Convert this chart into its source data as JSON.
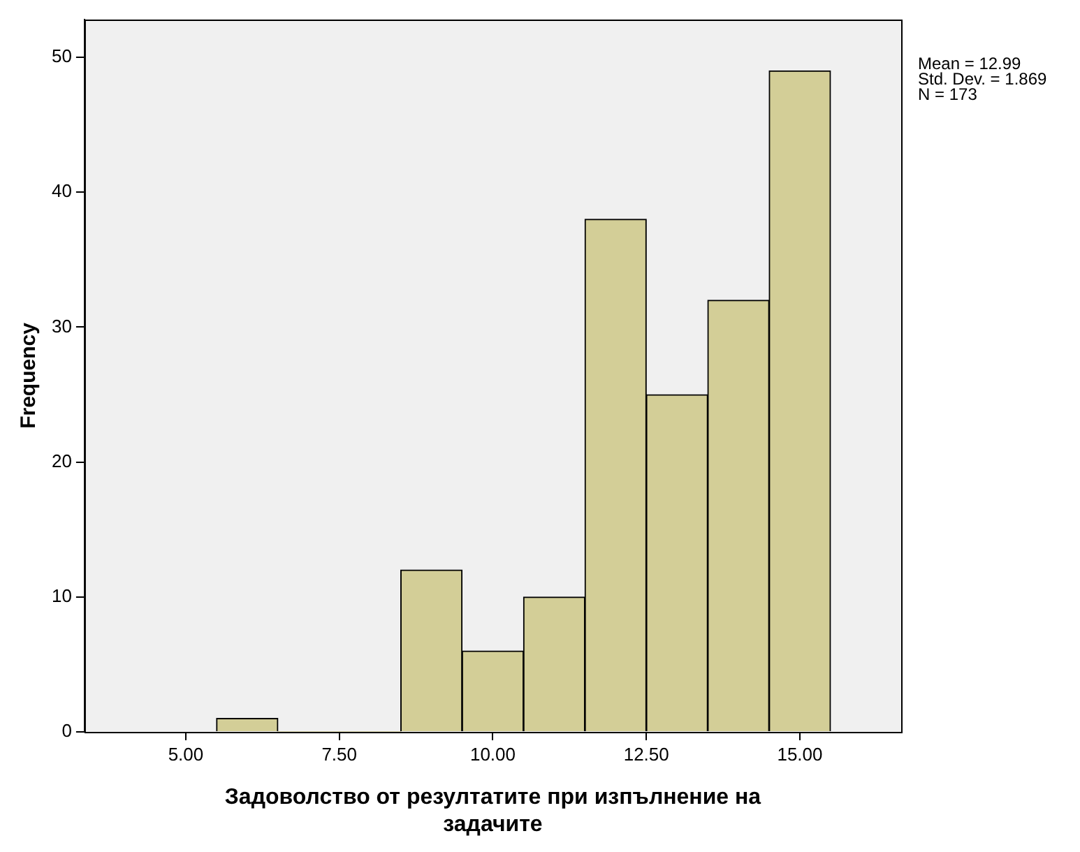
{
  "chart_data": {
    "type": "histogram",
    "xlabel": "Задоволство от резултатите при изпълнение на задачите",
    "ylabel": "Frequency",
    "bins": [
      5.5,
      6.5,
      7.5,
      8.5,
      9.5,
      10.5,
      11.5,
      12.5,
      13.5,
      14.5,
      15.5
    ],
    "values": [
      1,
      0,
      0,
      12,
      6,
      10,
      38,
      25,
      32,
      49
    ],
    "color": "#d3ce97",
    "xlim": [
      3.35,
      16.65
    ],
    "xticks": [
      {
        "value": 5,
        "label": "5.00"
      },
      {
        "value": 7.5,
        "label": "7.50"
      },
      {
        "value": 10,
        "label": "10.00"
      },
      {
        "value": 12.5,
        "label": "12.50"
      },
      {
        "value": 15,
        "label": "15.00"
      }
    ],
    "ylim": [
      0,
      52.8
    ],
    "yticks": [
      0,
      10,
      20,
      30,
      40,
      50
    ],
    "annotations": [
      "Mean = 12.99",
      "Std. Dev. = 1.869",
      "N = 173"
    ]
  }
}
